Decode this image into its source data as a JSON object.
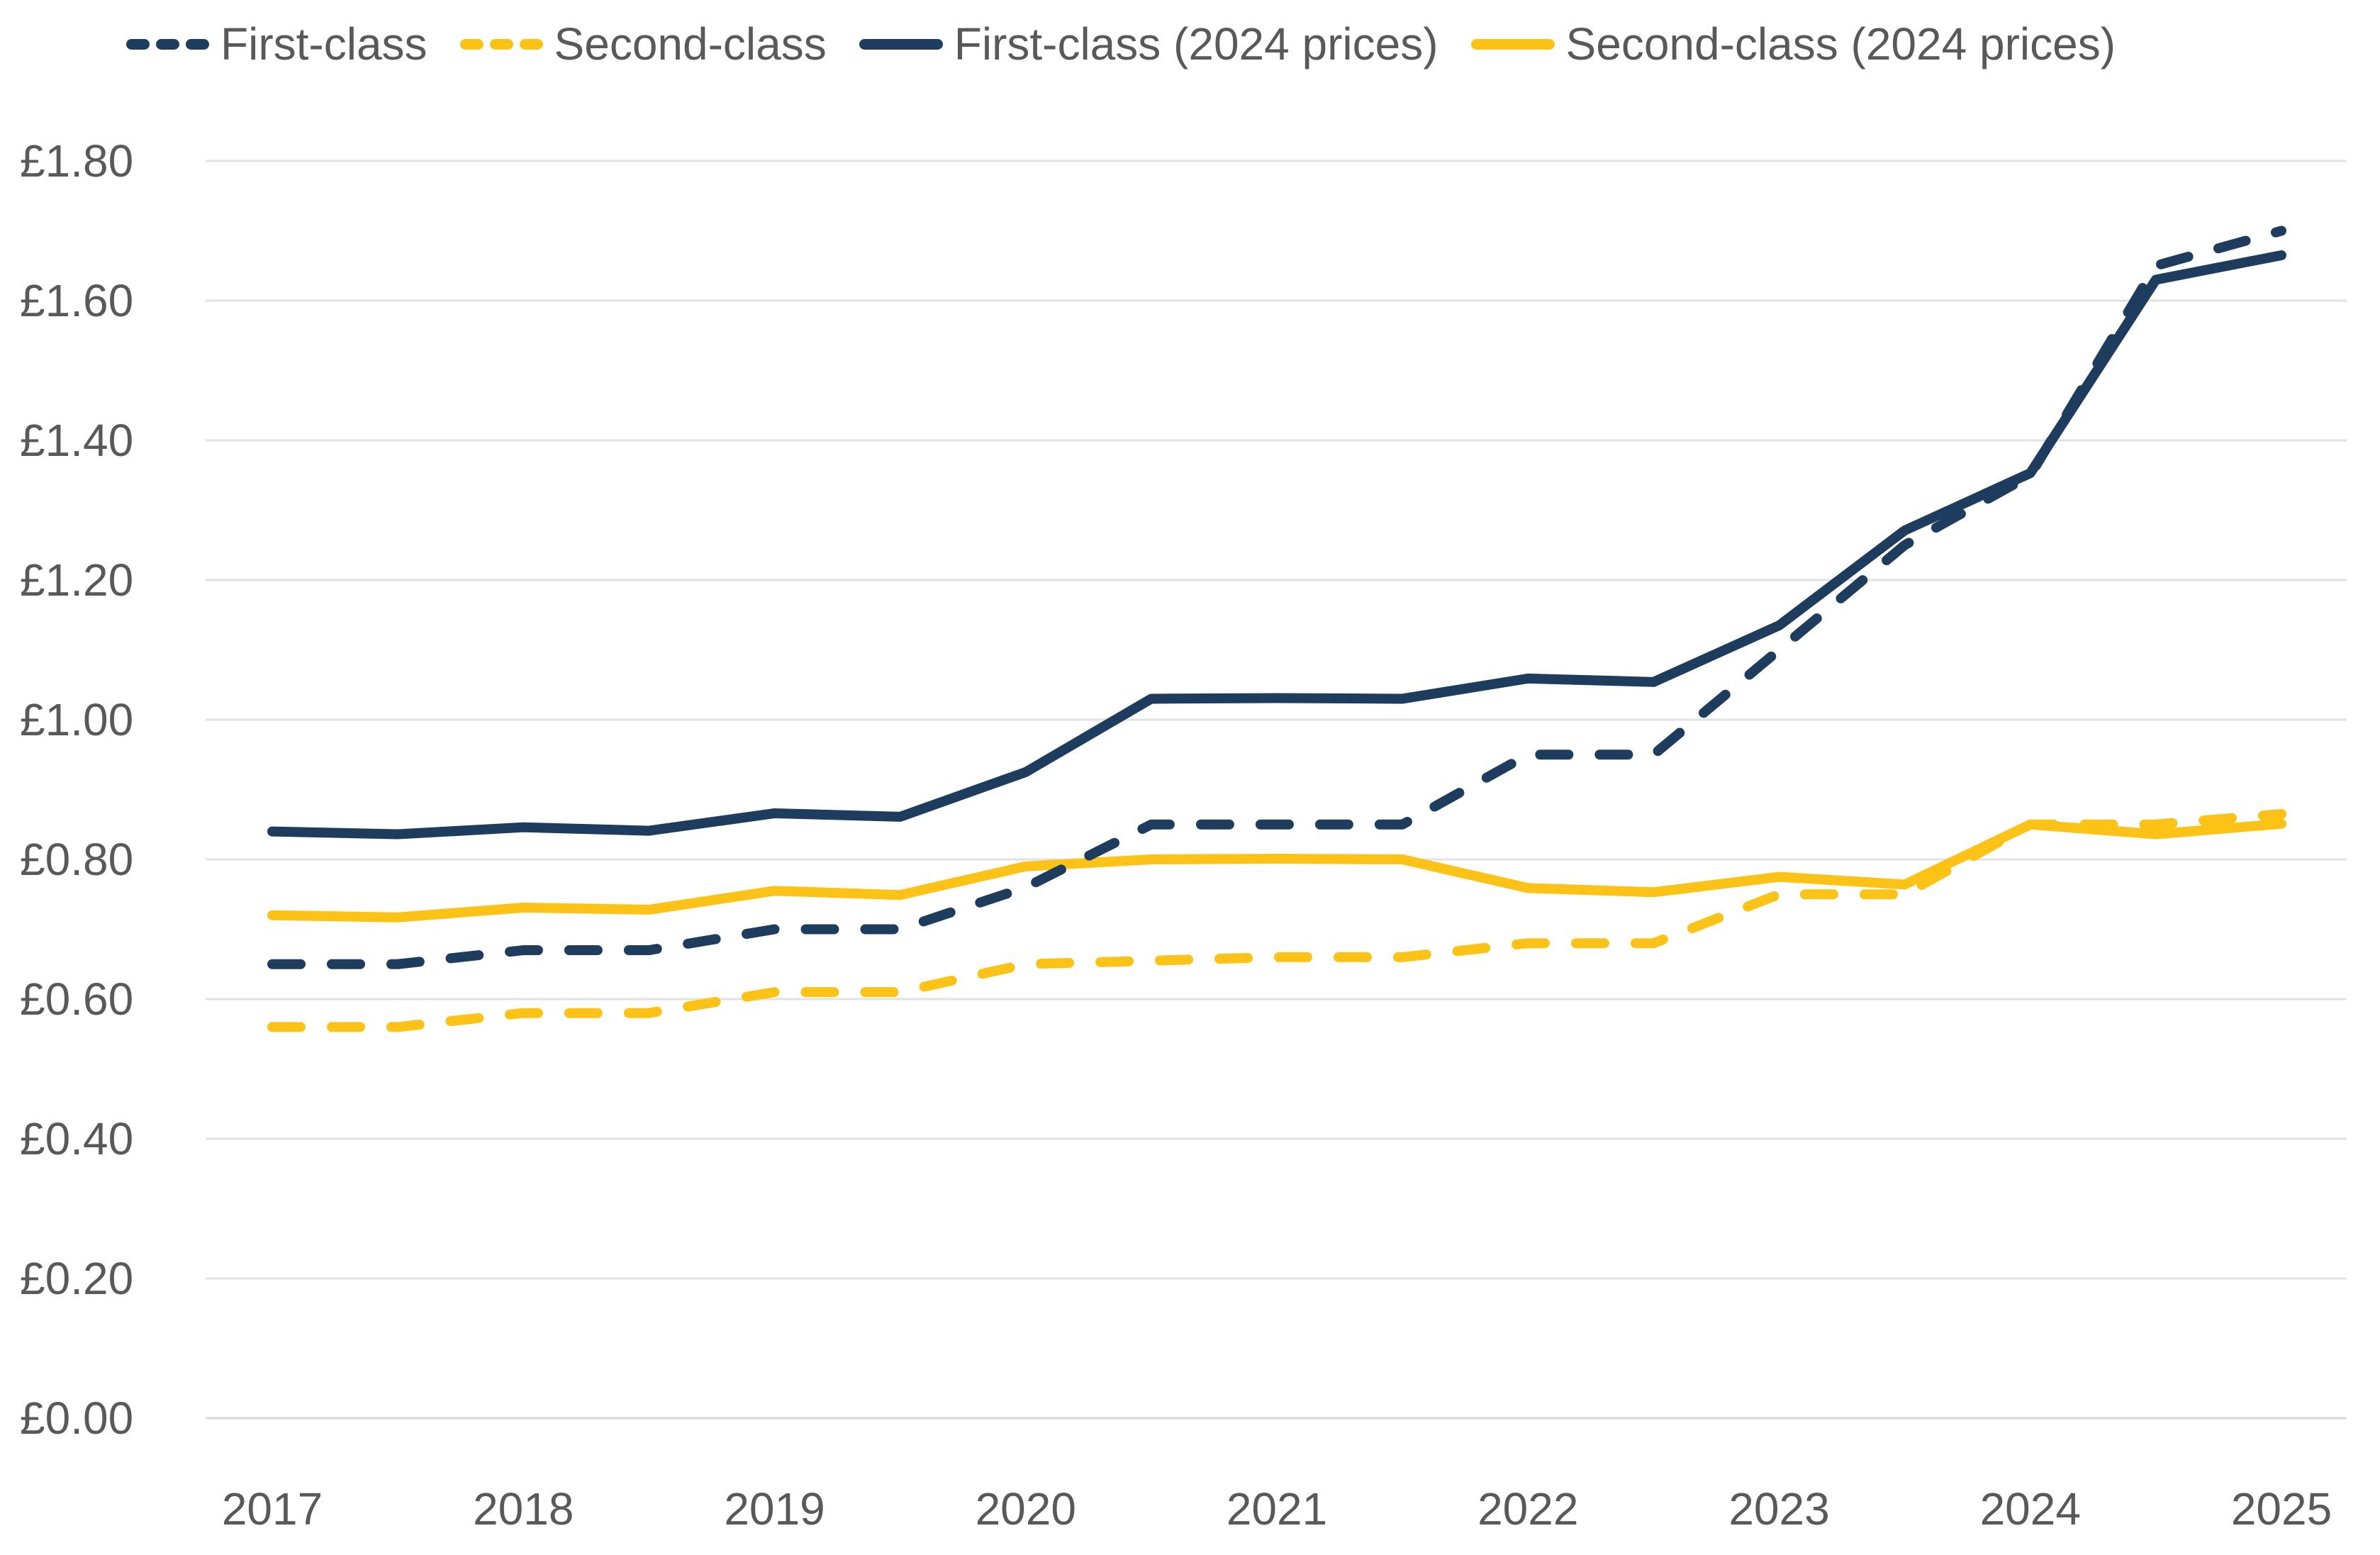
{
  "chart_data": {
    "type": "line",
    "title": "",
    "xlabel": "",
    "ylabel": "",
    "x": [
      2017,
      2017.5,
      2018,
      2018.5,
      2019,
      2019.5,
      2020,
      2020.5,
      2021,
      2021.5,
      2022,
      2022.5,
      2023,
      2023.5,
      2024,
      2024.5,
      2025
    ],
    "x_tick_labels": [
      "2017",
      "2018",
      "2019",
      "2020",
      "2021",
      "2022",
      "2023",
      "2024",
      "2025"
    ],
    "y_tick_values": [
      0,
      0.2,
      0.4,
      0.6,
      0.8,
      1.0,
      1.2,
      1.4,
      1.6,
      1.8
    ],
    "y_tick_labels": [
      "£0.00",
      "£0.20",
      "£0.40",
      "£0.60",
      "£0.80",
      "£1.00",
      "£1.20",
      "£1.40",
      "£1.60",
      "£1.80"
    ],
    "xlim": [
      2017,
      2025
    ],
    "ylim": [
      0,
      1.8
    ],
    "grid": "horizontal-only",
    "legend_position": "top",
    "series": [
      {
        "name": "First-class",
        "color": "#1e3c5e",
        "style": "dashed",
        "values": [
          0.65,
          0.65,
          0.67,
          0.67,
          0.7,
          0.7,
          0.76,
          0.85,
          0.85,
          0.85,
          0.95,
          0.95,
          1.1,
          1.25,
          1.35,
          1.65,
          1.7
        ]
      },
      {
        "name": "Second-class",
        "color": "#fdc216",
        "style": "dashed",
        "values": [
          0.56,
          0.56,
          0.58,
          0.58,
          0.61,
          0.61,
          0.65,
          0.655,
          0.66,
          0.66,
          0.68,
          0.68,
          0.75,
          0.75,
          0.85,
          0.85,
          0.865
        ]
      },
      {
        "name": "First-class (2024 prices)",
        "color": "#1e3c5e",
        "style": "solid",
        "values": [
          0.84,
          0.836,
          0.846,
          0.841,
          0.866,
          0.861,
          0.925,
          1.03,
          1.031,
          1.03,
          1.059,
          1.054,
          1.135,
          1.271,
          1.353,
          1.63,
          1.665
        ]
      },
      {
        "name": "Second-class (2024 prices)",
        "color": "#fdc216",
        "style": "solid",
        "values": [
          0.72,
          0.717,
          0.731,
          0.728,
          0.755,
          0.749,
          0.79,
          0.8,
          0.801,
          0.8,
          0.759,
          0.753,
          0.775,
          0.764,
          0.85,
          0.836,
          0.851
        ]
      }
    ],
    "draw_order": [
      2,
      3,
      0,
      1
    ]
  },
  "colors": {
    "axis_text": "#595959",
    "gridline": "#e2e2e2",
    "zero_gridline": "#d9d9d9",
    "background": "#ffffff"
  }
}
